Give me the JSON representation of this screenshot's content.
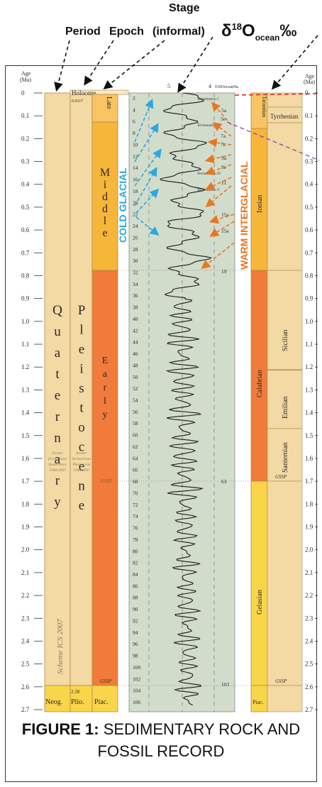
{
  "headers": {
    "period": "Period",
    "epoch": "Epoch",
    "stage_line1": "Stage",
    "stage_line2": "(informal)",
    "delta_main": "δ",
    "delta_sup": "18",
    "delta_o": "O",
    "delta_sub": "ocean",
    "delta_unit": "‰"
  },
  "age_axis": {
    "title_line1": "Age",
    "title_line2": "(Ma)",
    "ticks": [
      "0",
      "0.1",
      "0.2",
      "0.3",
      "0.4",
      "0.5",
      "0.6",
      "0.7",
      "0.8",
      "0.9",
      "1.0",
      "1.1",
      "1.2",
      "1.3",
      "1.4",
      "1.5",
      "1.6",
      "1.7",
      "1.8",
      "1.9",
      "2.0",
      "2.1",
      "2.2",
      "2.3",
      "2.4",
      "2.5",
      "2.6",
      "2.7"
    ]
  },
  "period_col": {
    "quaternary_letters": [
      "Q",
      "u",
      "a",
      "t",
      "e",
      "r",
      "n",
      "a",
      "r",
      "y"
    ],
    "former_note_left": [
      "former",
      "formal base",
      "Quaternary",
      "1948-2007"
    ],
    "scheme": "Scheme ICS 2007",
    "neogene": "Neog."
  },
  "epoch_col": {
    "holocene": "Holocene",
    "holocene_age": "0.0117",
    "pleistocene_letters": [
      "P",
      "l",
      "e",
      "i",
      "s",
      "t",
      "o",
      "c",
      "e",
      "n",
      "e"
    ],
    "former_note": [
      "former",
      "formal base",
      "Pleistocene",
      "1948-2007"
    ],
    "pliocene": "Plio.",
    "pliocene_age": "2.58"
  },
  "stage_col": {
    "late": "Late",
    "middle_letters": [
      "M",
      "i",
      "d",
      "d",
      "l",
      "e"
    ],
    "early_letters": [
      "E",
      "a",
      "r",
      "l",
      "y"
    ],
    "piacenzian": "Piac.",
    "gssp1": "GSSP",
    "gssp2": "GSSP"
  },
  "isotope": {
    "scale": [
      "5",
      "4"
    ],
    "axis_label_main": "δ18Oocean‰",
    "terminations": [
      "Termination I",
      "Termination II",
      "Termination IV",
      "Termination V"
    ],
    "mis_left": [
      "2",
      "4",
      "6",
      "8",
      "10",
      "12",
      "14",
      "16",
      "18",
      "20",
      "22",
      "24",
      "26",
      "28",
      "30",
      "32",
      "34",
      "36",
      "38",
      "40",
      "42",
      "44",
      "46",
      "48",
      "50",
      "52",
      "54",
      "56",
      "58",
      "60",
      "62",
      "64",
      "66",
      "68",
      "70",
      "72",
      "74",
      "76",
      "78",
      "80",
      "82",
      "84",
      "86",
      "88",
      "90",
      "92",
      "94",
      "96",
      "98",
      "100",
      "102",
      "104",
      "106"
    ],
    "mis_right": [
      "5a",
      "5e",
      "7a",
      "7e",
      "9a",
      "9e",
      "11",
      "15a",
      "15e",
      "19",
      "63",
      "103"
    ],
    "cold_label": "COLD GLACIAL",
    "warm_label": "WARM INTERGLACIAL"
  },
  "right_stage": {
    "tarantian": "Tarantian",
    "tyrrhenian": "Tyrrhenian",
    "ionian": "Ionian",
    "calabrian": "Calabrian",
    "sicilian": "Sicilian",
    "emilian": "Emilian",
    "santernian": "Santernian",
    "gelasian": "Gelasian",
    "piac": "Piac.",
    "gssp1": "GSSP",
    "gssp2": "GSSP"
  },
  "caption": {
    "bold": "FIGURE 1:",
    "rest": " SEDIMENTARY ROCK AND FOSSIL RECORD"
  },
  "colors": {
    "pale": "#f3d9a4",
    "mid": "#f6b63a",
    "orange": "#f07b3a",
    "yellow": "#f9d54a",
    "green_bg": "#d2dccb",
    "cold_arrow": "#27a9e1",
    "warm_arrow": "#e87722",
    "red_dash": "#e0261b",
    "purple_dash": "#7b3fa0"
  }
}
